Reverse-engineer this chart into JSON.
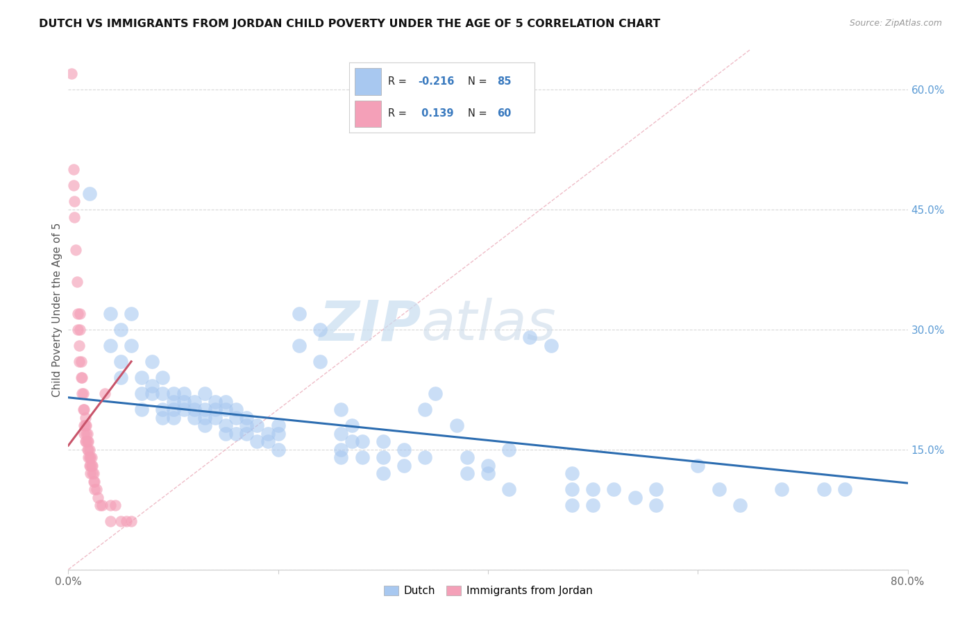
{
  "title": "DUTCH VS IMMIGRANTS FROM JORDAN CHILD POVERTY UNDER THE AGE OF 5 CORRELATION CHART",
  "source": "Source: ZipAtlas.com",
  "ylabel": "Child Poverty Under the Age of 5",
  "x_tick_labels": [
    "0.0%",
    "",
    "",
    "",
    "80.0%"
  ],
  "x_tick_values": [
    0.0,
    0.2,
    0.4,
    0.6,
    0.8
  ],
  "y_tick_labels_right": [
    "60.0%",
    "45.0%",
    "30.0%",
    "15.0%",
    ""
  ],
  "y_tick_values_right": [
    0.6,
    0.45,
    0.3,
    0.15,
    0.0
  ],
  "xlim": [
    0.0,
    0.8
  ],
  "ylim": [
    0.0,
    0.65
  ],
  "dutch_color": "#a8c8f0",
  "jordan_color": "#f4a0b8",
  "dutch_trend_color": "#2b6cb0",
  "jordan_trend_color": "#c8546a",
  "watermark": "ZIPatlas",
  "watermark_color_zip": "#c0d8ee",
  "watermark_color_atlas": "#c0d0e8",
  "dutch_trend": {
    "x_start": 0.0,
    "y_start": 0.215,
    "x_end": 0.8,
    "y_end": 0.108
  },
  "jordan_trend": {
    "x_start": 0.0,
    "y_start": 0.155,
    "x_end": 0.06,
    "y_end": 0.26
  },
  "diag_line": {
    "x_start": 0.0,
    "y_start": 0.0,
    "x_end": 0.65,
    "y_end": 0.65
  },
  "dutch_scatter": [
    [
      0.02,
      0.47
    ],
    [
      0.04,
      0.32
    ],
    [
      0.04,
      0.28
    ],
    [
      0.05,
      0.3
    ],
    [
      0.05,
      0.26
    ],
    [
      0.05,
      0.24
    ],
    [
      0.06,
      0.32
    ],
    [
      0.06,
      0.28
    ],
    [
      0.07,
      0.24
    ],
    [
      0.07,
      0.22
    ],
    [
      0.07,
      0.2
    ],
    [
      0.08,
      0.26
    ],
    [
      0.08,
      0.23
    ],
    [
      0.08,
      0.22
    ],
    [
      0.09,
      0.24
    ],
    [
      0.09,
      0.22
    ],
    [
      0.09,
      0.2
    ],
    [
      0.09,
      0.19
    ],
    [
      0.1,
      0.22
    ],
    [
      0.1,
      0.21
    ],
    [
      0.1,
      0.2
    ],
    [
      0.1,
      0.19
    ],
    [
      0.11,
      0.22
    ],
    [
      0.11,
      0.21
    ],
    [
      0.11,
      0.2
    ],
    [
      0.12,
      0.21
    ],
    [
      0.12,
      0.2
    ],
    [
      0.12,
      0.19
    ],
    [
      0.13,
      0.22
    ],
    [
      0.13,
      0.2
    ],
    [
      0.13,
      0.19
    ],
    [
      0.13,
      0.18
    ],
    [
      0.14,
      0.21
    ],
    [
      0.14,
      0.2
    ],
    [
      0.14,
      0.19
    ],
    [
      0.15,
      0.21
    ],
    [
      0.15,
      0.2
    ],
    [
      0.15,
      0.18
    ],
    [
      0.15,
      0.17
    ],
    [
      0.16,
      0.2
    ],
    [
      0.16,
      0.19
    ],
    [
      0.16,
      0.17
    ],
    [
      0.17,
      0.19
    ],
    [
      0.17,
      0.18
    ],
    [
      0.17,
      0.17
    ],
    [
      0.18,
      0.18
    ],
    [
      0.18,
      0.16
    ],
    [
      0.19,
      0.17
    ],
    [
      0.19,
      0.16
    ],
    [
      0.2,
      0.18
    ],
    [
      0.2,
      0.17
    ],
    [
      0.2,
      0.15
    ],
    [
      0.22,
      0.32
    ],
    [
      0.22,
      0.28
    ],
    [
      0.24,
      0.3
    ],
    [
      0.24,
      0.26
    ],
    [
      0.26,
      0.2
    ],
    [
      0.26,
      0.17
    ],
    [
      0.26,
      0.15
    ],
    [
      0.26,
      0.14
    ],
    [
      0.27,
      0.18
    ],
    [
      0.27,
      0.16
    ],
    [
      0.28,
      0.16
    ],
    [
      0.28,
      0.14
    ],
    [
      0.3,
      0.16
    ],
    [
      0.3,
      0.14
    ],
    [
      0.3,
      0.12
    ],
    [
      0.32,
      0.15
    ],
    [
      0.32,
      0.13
    ],
    [
      0.34,
      0.2
    ],
    [
      0.34,
      0.14
    ],
    [
      0.35,
      0.22
    ],
    [
      0.37,
      0.18
    ],
    [
      0.38,
      0.14
    ],
    [
      0.38,
      0.12
    ],
    [
      0.4,
      0.13
    ],
    [
      0.4,
      0.12
    ],
    [
      0.42,
      0.15
    ],
    [
      0.42,
      0.1
    ],
    [
      0.44,
      0.29
    ],
    [
      0.46,
      0.28
    ],
    [
      0.48,
      0.12
    ],
    [
      0.48,
      0.1
    ],
    [
      0.48,
      0.08
    ],
    [
      0.5,
      0.1
    ],
    [
      0.5,
      0.08
    ],
    [
      0.52,
      0.1
    ],
    [
      0.54,
      0.09
    ],
    [
      0.56,
      0.1
    ],
    [
      0.56,
      0.08
    ],
    [
      0.6,
      0.13
    ],
    [
      0.62,
      0.1
    ],
    [
      0.64,
      0.08
    ],
    [
      0.68,
      0.1
    ],
    [
      0.72,
      0.1
    ],
    [
      0.74,
      0.1
    ]
  ],
  "jordan_scatter": [
    [
      0.003,
      0.62
    ],
    [
      0.005,
      0.5
    ],
    [
      0.005,
      0.48
    ],
    [
      0.006,
      0.46
    ],
    [
      0.006,
      0.44
    ],
    [
      0.007,
      0.4
    ],
    [
      0.008,
      0.36
    ],
    [
      0.009,
      0.32
    ],
    [
      0.009,
      0.3
    ],
    [
      0.01,
      0.28
    ],
    [
      0.01,
      0.26
    ],
    [
      0.011,
      0.32
    ],
    [
      0.011,
      0.3
    ],
    [
      0.012,
      0.26
    ],
    [
      0.012,
      0.24
    ],
    [
      0.013,
      0.24
    ],
    [
      0.013,
      0.22
    ],
    [
      0.014,
      0.22
    ],
    [
      0.014,
      0.2
    ],
    [
      0.015,
      0.2
    ],
    [
      0.015,
      0.18
    ],
    [
      0.015,
      0.17
    ],
    [
      0.016,
      0.19
    ],
    [
      0.016,
      0.18
    ],
    [
      0.016,
      0.16
    ],
    [
      0.017,
      0.18
    ],
    [
      0.017,
      0.17
    ],
    [
      0.017,
      0.16
    ],
    [
      0.018,
      0.17
    ],
    [
      0.018,
      0.16
    ],
    [
      0.018,
      0.15
    ],
    [
      0.019,
      0.16
    ],
    [
      0.019,
      0.15
    ],
    [
      0.019,
      0.14
    ],
    [
      0.02,
      0.15
    ],
    [
      0.02,
      0.14
    ],
    [
      0.02,
      0.13
    ],
    [
      0.021,
      0.14
    ],
    [
      0.021,
      0.13
    ],
    [
      0.021,
      0.12
    ],
    [
      0.022,
      0.14
    ],
    [
      0.022,
      0.13
    ],
    [
      0.023,
      0.13
    ],
    [
      0.023,
      0.12
    ],
    [
      0.024,
      0.12
    ],
    [
      0.024,
      0.11
    ],
    [
      0.025,
      0.11
    ],
    [
      0.025,
      0.1
    ],
    [
      0.027,
      0.1
    ],
    [
      0.028,
      0.09
    ],
    [
      0.03,
      0.08
    ],
    [
      0.032,
      0.08
    ],
    [
      0.035,
      0.22
    ],
    [
      0.04,
      0.08
    ],
    [
      0.04,
      0.06
    ],
    [
      0.045,
      0.08
    ],
    [
      0.05,
      0.06
    ],
    [
      0.055,
      0.06
    ],
    [
      0.06,
      0.06
    ]
  ]
}
